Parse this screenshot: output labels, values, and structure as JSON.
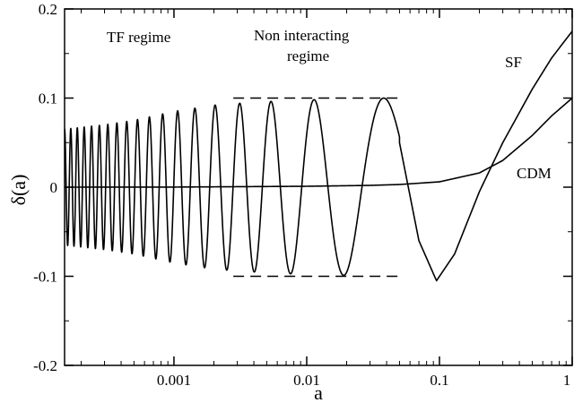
{
  "chart_data": {
    "type": "line",
    "title": "",
    "xlabel": "a",
    "ylabel": "δ(a)",
    "xscale": "log",
    "xlim": [
      0.00015,
      1
    ],
    "ylim": [
      -0.2,
      0.2
    ],
    "grid": false,
    "legend": "none",
    "x_ticks": [
      {
        "value": 0.001,
        "label": "0.001"
      },
      {
        "value": 0.01,
        "label": "0.01"
      },
      {
        "value": 0.1,
        "label": "0.1"
      },
      {
        "value": 1,
        "label": "1"
      }
    ],
    "y_ticks": [
      {
        "value": -0.2,
        "label": "-0.2"
      },
      {
        "value": -0.1,
        "label": "-0.1"
      },
      {
        "value": 0,
        "label": "0"
      },
      {
        "value": 0.1,
        "label": "0.1"
      },
      {
        "value": 0.2,
        "label": "0.2"
      }
    ],
    "series": [
      {
        "name": "SF",
        "color": "#000000",
        "x": [
          0.00015,
          0.0003,
          0.0005,
          0.001,
          0.002,
          0.003,
          0.005,
          0.01,
          0.02,
          0.03,
          0.038,
          0.05,
          0.07,
          0.095,
          0.13,
          0.2,
          0.3,
          0.5,
          0.7,
          1.0
        ],
        "y": [
          0.065,
          0.07,
          0.075,
          0.085,
          0.092,
          0.094,
          0.096,
          0.098,
          0.099,
          0.099,
          0.1,
          0.05,
          -0.06,
          -0.105,
          -0.075,
          -0.005,
          0.05,
          0.11,
          0.145,
          0.175
        ],
        "envelope": "oscillating; period shrinks toward small a"
      },
      {
        "name": "CDM",
        "color": "#000000",
        "x": [
          0.00015,
          0.001,
          0.01,
          0.03,
          0.05,
          0.1,
          0.2,
          0.3,
          0.5,
          0.7,
          1.0
        ],
        "y": [
          0.0,
          0.0001,
          0.001,
          0.002,
          0.003,
          0.006,
          0.016,
          0.03,
          0.058,
          0.08,
          0.1
        ]
      }
    ],
    "annotations": [
      {
        "text": "TF regime"
      },
      {
        "text": "Non interacting"
      },
      {
        "text": "regime"
      },
      {
        "text": "SF"
      },
      {
        "text": "CDM"
      }
    ],
    "reference_lines": [
      {
        "style": "dashed",
        "y": 0.1,
        "x_range": [
          0.0028,
          0.05
        ]
      },
      {
        "style": "dashed",
        "y": -0.1,
        "x_range": [
          0.0028,
          0.05
        ]
      }
    ]
  }
}
